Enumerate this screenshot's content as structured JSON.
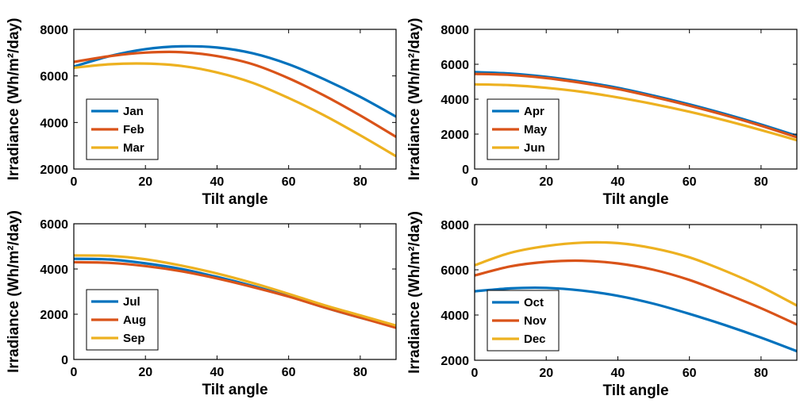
{
  "chart_data": [
    {
      "type": "line",
      "xlabel": "Tilt angle",
      "ylabel": "Irradiance (Wh/m²/day)",
      "xlim": [
        0,
        90
      ],
      "ylim": [
        2000,
        8000
      ],
      "xticks": [
        0,
        20,
        40,
        60,
        80
      ],
      "yticks": [
        2000,
        4000,
        6000,
        8000
      ],
      "legend": "bottom-left",
      "grid": false,
      "x": [
        0,
        10,
        20,
        30,
        40,
        50,
        60,
        70,
        80,
        90
      ],
      "series": [
        {
          "name": "Jan",
          "color": "#0072BD",
          "values": [
            6400,
            6850,
            7150,
            7270,
            7220,
            6970,
            6500,
            5850,
            5100,
            4250
          ]
        },
        {
          "name": "Feb",
          "color": "#D95319",
          "values": [
            6600,
            6850,
            7000,
            7020,
            6850,
            6500,
            5900,
            5150,
            4300,
            3380
          ]
        },
        {
          "name": "Mar",
          "color": "#EDB120",
          "values": [
            6350,
            6500,
            6530,
            6430,
            6150,
            5700,
            5050,
            4300,
            3450,
            2550
          ]
        }
      ]
    },
    {
      "type": "line",
      "xlabel": "Tilt angle",
      "ylabel": "Irradiance (Wh/m²/day)",
      "xlim": [
        0,
        90
      ],
      "ylim": [
        0,
        8000
      ],
      "xticks": [
        0,
        20,
        40,
        60,
        80
      ],
      "yticks": [
        0,
        2000,
        4000,
        6000,
        8000
      ],
      "legend": "bottom-left",
      "grid": false,
      "x": [
        0,
        10,
        20,
        30,
        40,
        50,
        60,
        70,
        80,
        90
      ],
      "series": [
        {
          "name": "Apr",
          "color": "#0072BD",
          "values": [
            5550,
            5470,
            5280,
            5000,
            4650,
            4200,
            3700,
            3150,
            2550,
            1900
          ]
        },
        {
          "name": "May",
          "color": "#D95319",
          "values": [
            5450,
            5390,
            5210,
            4930,
            4580,
            4130,
            3630,
            3080,
            2480,
            1820
          ]
        },
        {
          "name": "Jun",
          "color": "#EDB120",
          "values": [
            4850,
            4800,
            4650,
            4420,
            4100,
            3720,
            3280,
            2780,
            2230,
            1650
          ]
        }
      ]
    },
    {
      "type": "line",
      "xlabel": "Tilt angle",
      "ylabel": "Irradiance (Wh/m²/day)",
      "xlim": [
        0,
        90
      ],
      "ylim": [
        0,
        6000
      ],
      "xticks": [
        0,
        20,
        40,
        60,
        80
      ],
      "yticks": [
        0,
        2000,
        4000,
        6000
      ],
      "legend": "bottom-left",
      "grid": false,
      "x": [
        0,
        10,
        20,
        30,
        40,
        50,
        60,
        70,
        80,
        90
      ],
      "series": [
        {
          "name": "Jul",
          "color": "#0072BD",
          "values": [
            4450,
            4420,
            4250,
            4000,
            3650,
            3250,
            2800,
            2300,
            1850,
            1450
          ]
        },
        {
          "name": "Aug",
          "color": "#D95319",
          "values": [
            4300,
            4270,
            4130,
            3900,
            3580,
            3200,
            2780,
            2300,
            1850,
            1400
          ]
        },
        {
          "name": "Sep",
          "color": "#EDB120",
          "values": [
            4600,
            4580,
            4430,
            4150,
            3800,
            3380,
            2900,
            2400,
            1950,
            1500
          ]
        }
      ]
    },
    {
      "type": "line",
      "xlabel": "Tilt angle",
      "ylabel": "Irradiance (Wh/m²/day)",
      "xlim": [
        0,
        90
      ],
      "ylim": [
        2000,
        8000
      ],
      "xticks": [
        0,
        20,
        40,
        60,
        80
      ],
      "yticks": [
        2000,
        4000,
        6000,
        8000
      ],
      "legend": "bottom-left",
      "grid": false,
      "x": [
        0,
        10,
        20,
        30,
        40,
        50,
        60,
        70,
        80,
        90
      ],
      "series": [
        {
          "name": "Oct",
          "color": "#0072BD",
          "values": [
            5050,
            5180,
            5200,
            5080,
            4850,
            4500,
            4050,
            3550,
            3000,
            2400
          ]
        },
        {
          "name": "Nov",
          "color": "#D95319",
          "values": [
            5750,
            6150,
            6350,
            6400,
            6280,
            6000,
            5550,
            4950,
            4300,
            3580
          ]
        },
        {
          "name": "Dec",
          "color": "#EDB120",
          "values": [
            6200,
            6750,
            7050,
            7200,
            7180,
            6950,
            6550,
            5950,
            5250,
            4420
          ]
        }
      ]
    }
  ]
}
